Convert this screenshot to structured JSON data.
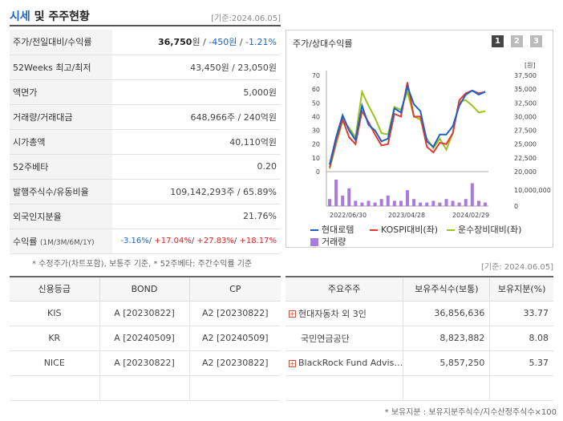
{
  "header": {
    "title_part1": "시세",
    "title_part2": " 및 주주현황",
    "base_date": "[기준:2024.06.05]"
  },
  "info_rows": [
    {
      "label": "주가/전일대비/수익률",
      "price": "36,750",
      "unit": "원",
      "sep": " / ",
      "change": "-450원",
      "sep2": " / ",
      "rate": "-1.21%"
    },
    {
      "label": "52Weeks 최고/최저",
      "value": "43,450원 / 23,050원"
    },
    {
      "label": "액면가",
      "value": "5,000원"
    },
    {
      "label": "거래량/거래대금",
      "value": "648,966주 / 240억원"
    },
    {
      "label": "시가총액",
      "value": "40,110억원"
    },
    {
      "label": "52주베타",
      "value": "0.20"
    },
    {
      "label": "발행주식수/유동비율",
      "value": "109,142,293주 / 65.89%"
    },
    {
      "label": "외국인지분율",
      "value": "21.76%"
    }
  ],
  "returns": {
    "label": "수익률",
    "sublabel": "(1M/3M/6M/1Y)",
    "r1": "-3.16%",
    "r2": "+17.04%",
    "r3": "+27.83%",
    "r4": "+18.17%",
    "slash": "/ "
  },
  "note": "* 수정주가(차트포함), 보통주 기준, * 52주베타: 주간수익률 기준",
  "chart": {
    "title": "주가/상대수익률",
    "pages": [
      "1",
      "2",
      "3"
    ],
    "unit_label": "[원]",
    "left_ticks": [
      "70",
      "60",
      "50",
      "40",
      "30",
      "20",
      "10",
      "0"
    ],
    "right_ticks": [
      "37,500",
      "35,000",
      "32,500",
      "30,000",
      "27,500",
      "25,000",
      "22,500",
      "20,000"
    ],
    "volume_tick": "10,000,000",
    "volume_zero": "0",
    "x_labels": [
      "2022/06/30",
      "2023/04/28",
      "2024/02/29"
    ],
    "legend": [
      "현대로템",
      "KOSPI대비(좌)",
      "운수장비대비(좌)",
      "거래량"
    ],
    "colors": {
      "stock": "#1f5fc8",
      "kospi": "#e23b30",
      "sector": "#9ac41c",
      "volume": "#a77be0"
    }
  },
  "chart_data": {
    "type": "line",
    "x_labels": [
      "2022/06/30",
      "2023/04/28",
      "2024/02/29"
    ],
    "ylim_left": [
      0,
      70
    ],
    "ylim_right": [
      20000,
      37500
    ],
    "series": [
      {
        "name": "현대로템",
        "values": [
          5,
          25,
          41,
          30,
          23,
          48,
          34,
          30,
          22,
          24,
          46,
          43,
          62,
          49,
          44,
          22,
          18,
          27,
          27,
          33,
          48,
          56,
          59,
          56,
          58
        ]
      },
      {
        "name": "KOSPI대비(좌)",
        "values": [
          3,
          22,
          38,
          25,
          20,
          44,
          36,
          27,
          19,
          20,
          42,
          40,
          65,
          40,
          40,
          18,
          14,
          21,
          20,
          28,
          52,
          57,
          59,
          57,
          58
        ]
      },
      {
        "name": "운수장비대비(좌)",
        "values": [
          2,
          20,
          37,
          32,
          25,
          58,
          48,
          39,
          28,
          27,
          47,
          45,
          58,
          40,
          38,
          24,
          17,
          24,
          16,
          28,
          51,
          52,
          48,
          43,
          44
        ]
      },
      {
        "name": "거래량",
        "values": [
          4,
          15,
          6,
          10,
          3,
          2,
          3,
          2,
          4,
          6,
          3,
          3,
          9,
          4,
          2,
          2,
          3,
          2,
          4,
          3,
          2,
          4,
          13,
          3,
          2
        ]
      }
    ]
  },
  "date2": "[기준: 2024.06.05]",
  "credit": {
    "headers": [
      "신용등급",
      "BOND",
      "CP"
    ],
    "rows": [
      [
        "KIS",
        "A [20230822]",
        "A2 [20230822]"
      ],
      [
        "KR",
        "A [20240509]",
        "A2 [20240509]"
      ],
      [
        "NICE",
        "A [20230822]",
        "A2 [20230822]"
      ],
      [
        "",
        "",
        ""
      ]
    ]
  },
  "holders": {
    "headers": [
      "주요주주",
      "보유주식수(보통)",
      "보유지분(%)"
    ],
    "rows": [
      {
        "name": "현대자동차 외 3인",
        "shares": "36,856,636",
        "pct": "33.77",
        "expand": true
      },
      {
        "name": "국민연금공단",
        "shares": "8,823,882",
        "pct": "8.08",
        "expand": false
      },
      {
        "name": "BlackRock Fund Advis…",
        "shares": "5,857,250",
        "pct": "5.37",
        "expand": true
      },
      {
        "name": "",
        "shares": "",
        "pct": "",
        "expand": false
      }
    ],
    "plus": "+"
  },
  "footnote": "* 보유지분 : 보유지분주식수/지수산정주식수×100"
}
